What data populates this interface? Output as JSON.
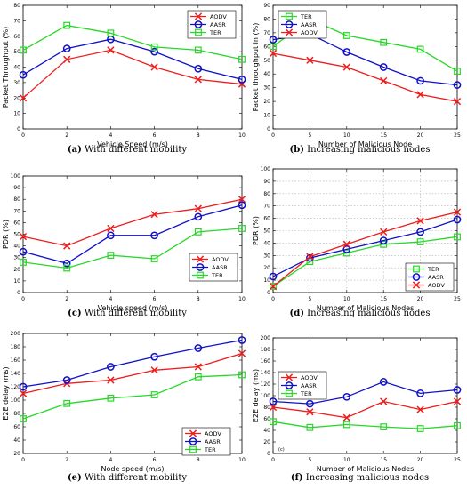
{
  "colors": {
    "AODV": "#ee1c1c",
    "AASR": "#1010c8",
    "TER": "#27d827"
  },
  "chart_data": [
    {
      "type": "line",
      "xlabel": "Vehicle Speed (m/s)",
      "ylabel": "Packet Throughput (%)",
      "xlim": [
        0,
        10
      ],
      "ylim": [
        0,
        80
      ],
      "xticks": [
        0,
        2,
        4,
        6,
        8,
        10
      ],
      "yticks": [
        0,
        10,
        20,
        30,
        40,
        50,
        60,
        70,
        80
      ],
      "x": [
        0,
        2,
        4,
        6,
        8,
        10
      ],
      "legend_position": "top-right",
      "grid": false,
      "caption_label": "(a)",
      "caption_text": "With different mobility",
      "series": [
        {
          "name": "AODV",
          "marker": "x",
          "values": [
            20,
            45,
            51,
            40,
            32,
            29
          ]
        },
        {
          "name": "AASR",
          "marker": "o",
          "values": [
            35,
            52,
            58,
            50,
            39,
            32
          ]
        },
        {
          "name": "TER",
          "marker": "s",
          "values": [
            51,
            67,
            62,
            53,
            51,
            45
          ]
        }
      ]
    },
    {
      "type": "line",
      "xlabel": "Number of Malicious Node",
      "ylabel": "Packet throughput in (%)",
      "xlim": [
        0,
        25
      ],
      "ylim": [
        0,
        90
      ],
      "xticks": [
        0,
        5,
        10,
        15,
        20,
        25
      ],
      "yticks": [
        0,
        10,
        20,
        30,
        40,
        50,
        60,
        70,
        80,
        90
      ],
      "x": [
        0,
        5,
        10,
        15,
        20,
        25
      ],
      "legend_position": "top-left",
      "grid": false,
      "caption_label": "(b)",
      "caption_text": "Increasing malicious nodes",
      "series": [
        {
          "name": "TER",
          "marker": "s",
          "values": [
            60,
            80,
            68,
            63,
            58,
            42
          ]
        },
        {
          "name": "AASR",
          "marker": "o",
          "values": [
            65,
            69,
            56,
            45,
            35,
            32
          ]
        },
        {
          "name": "AODV",
          "marker": "x",
          "values": [
            55,
            50,
            45,
            35,
            25,
            20
          ]
        }
      ]
    },
    {
      "type": "line",
      "xlabel": "Vehicle speed (m/s)",
      "ylabel": "PDR (%)",
      "xlim": [
        0,
        10
      ],
      "ylim": [
        0,
        100
      ],
      "xticks": [
        0,
        2,
        4,
        6,
        8,
        10
      ],
      "yticks": [
        0,
        10,
        20,
        30,
        40,
        50,
        60,
        70,
        80,
        90,
        100
      ],
      "x": [
        0,
        2,
        4,
        6,
        8,
        10
      ],
      "legend_position": "bottom-right",
      "grid": false,
      "caption_label": "(c)",
      "caption_text": "With different mobility",
      "series": [
        {
          "name": "AODV",
          "marker": "x",
          "values": [
            48,
            40,
            55,
            67,
            72,
            80
          ]
        },
        {
          "name": "AASR",
          "marker": "o",
          "values": [
            35,
            25,
            49,
            49,
            65,
            75
          ]
        },
        {
          "name": "TER",
          "marker": "s",
          "values": [
            26,
            21,
            32,
            29,
            52,
            55
          ]
        }
      ]
    },
    {
      "type": "line",
      "xlabel": "Number of Malicious Nodes",
      "ylabel": "PDR (%)",
      "xlim": [
        0,
        25
      ],
      "ylim": [
        0,
        100
      ],
      "xticks": [
        0,
        5,
        10,
        15,
        20,
        25
      ],
      "yticks": [
        0,
        10,
        20,
        30,
        40,
        50,
        60,
        70,
        80,
        90,
        100
      ],
      "x": [
        0,
        5,
        10,
        15,
        20,
        25
      ],
      "legend_position": "bottom-right",
      "grid": true,
      "caption_label": "(d)",
      "caption_text": "Increasing malicious nodes",
      "series": [
        {
          "name": "TER",
          "marker": "s",
          "values": [
            5,
            25,
            32,
            39,
            41,
            45
          ]
        },
        {
          "name": "AASR",
          "marker": "o",
          "values": [
            13,
            28,
            35,
            42,
            49,
            59
          ]
        },
        {
          "name": "AODV",
          "marker": "x",
          "values": [
            5,
            29,
            39,
            49,
            58,
            65
          ]
        }
      ]
    },
    {
      "type": "line",
      "xlabel": "Node speed (m/s)",
      "ylabel": "E2E delay (ms)",
      "xlim": [
        0,
        10
      ],
      "ylim": [
        20,
        200
      ],
      "xticks": [
        0,
        2,
        4,
        6,
        8,
        10
      ],
      "yticks": [
        20,
        40,
        60,
        80,
        100,
        120,
        140,
        160,
        180,
        200
      ],
      "x": [
        0,
        2,
        4,
        6,
        8,
        10
      ],
      "legend_position": "bottom-right",
      "grid": false,
      "caption_label": "(e)",
      "caption_text": "With different mobility",
      "series": [
        {
          "name": "AODV",
          "marker": "x",
          "values": [
            110,
            125,
            130,
            145,
            150,
            170
          ]
        },
        {
          "name": "AASR",
          "marker": "o",
          "values": [
            120,
            130,
            150,
            165,
            178,
            190
          ]
        },
        {
          "name": "TER",
          "marker": "s",
          "values": [
            72,
            95,
            103,
            108,
            135,
            138
          ]
        }
      ]
    },
    {
      "type": "line",
      "xlabel": "Number of Malicious Nodes",
      "ylabel": "E2E delay (ms)",
      "xlim": [
        0,
        25
      ],
      "ylim": [
        0,
        200
      ],
      "xticks": [
        0,
        5,
        10,
        15,
        20,
        25
      ],
      "yticks": [
        0,
        20,
        40,
        60,
        80,
        100,
        120,
        140,
        160,
        180,
        200
      ],
      "x": [
        0,
        5,
        10,
        15,
        20,
        25
      ],
      "legend_position": "top-left",
      "grid": false,
      "annotation": "(c)",
      "caption_label": "(f)",
      "caption_text": "Increasing malicious nodes",
      "series": [
        {
          "name": "AODV",
          "marker": "x",
          "values": [
            80,
            72,
            62,
            90,
            76,
            90
          ]
        },
        {
          "name": "AASR",
          "marker": "o",
          "values": [
            90,
            86,
            98,
            124,
            104,
            110
          ]
        },
        {
          "name": "TER",
          "marker": "s",
          "values": [
            55,
            45,
            50,
            46,
            43,
            48
          ]
        }
      ]
    }
  ]
}
